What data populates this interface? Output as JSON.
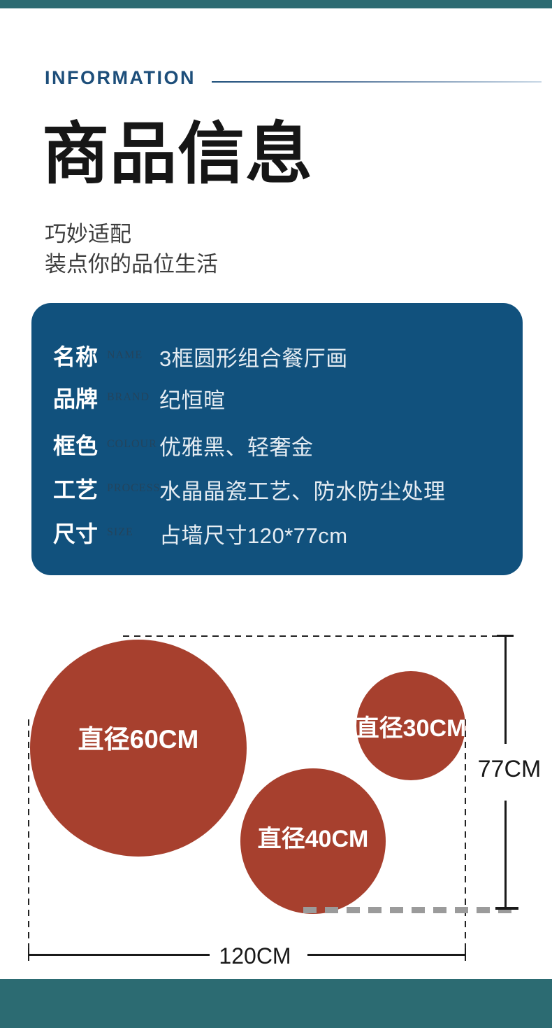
{
  "header": {
    "eyebrow": "INFORMATION",
    "title": "商品信息",
    "subtitle_line1": "巧妙适配",
    "subtitle_line2": "装点你的品位生活",
    "accent_color": "#1d4e7a"
  },
  "spec_card": {
    "background_color": "#11517d",
    "rows": [
      {
        "label": "名称",
        "label_en": "NAME",
        "value": "3框圆形组合餐厅画"
      },
      {
        "label": "品牌",
        "label_en": "BRAND",
        "value": "纪恒暄"
      },
      {
        "label": "框色",
        "label_en": "COLOUR",
        "value": "优雅黑、轻奢金"
      },
      {
        "label": "工艺",
        "label_en": "PROCESS",
        "value": "水晶晶瓷工艺、防水防尘处理"
      },
      {
        "label": "尺寸",
        "label_en": "SIZE",
        "value": "占墙尺寸120*77cm"
      }
    ]
  },
  "diagram": {
    "circle_color": "#a7402e",
    "circles": [
      {
        "label": "直径60CM",
        "diameter_cm": 60
      },
      {
        "label": "直径40CM",
        "diameter_cm": 40
      },
      {
        "label": "直径30CM",
        "diameter_cm": 30
      }
    ],
    "width_label": "120CM",
    "height_label": "77CM"
  },
  "brand_bar_color": "#2c6b72"
}
